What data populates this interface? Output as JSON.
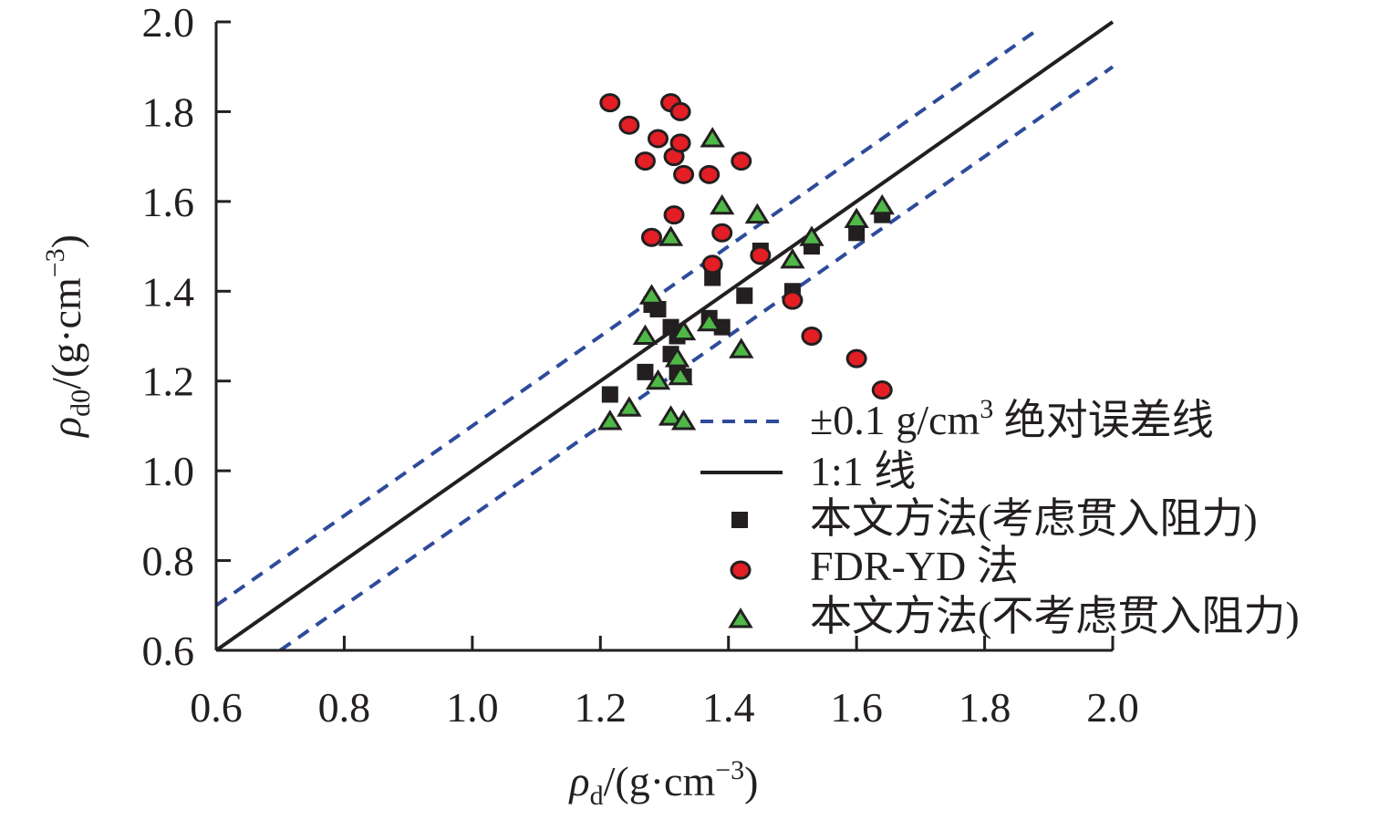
{
  "chart_data": {
    "type": "scatter",
    "title": "",
    "xlabel": {
      "symbol": "ρ",
      "sub": "d",
      "unit": "/(g·cm",
      "exp": "−3",
      "close": ")"
    },
    "ylabel": {
      "symbol": "ρ",
      "sub": "d0",
      "unit": "/(g·cm",
      "exp": "−3",
      "close": ")"
    },
    "xlim": [
      0.6,
      2.0
    ],
    "ylim": [
      0.6,
      2.0
    ],
    "xticks": [
      "0.6",
      "0.8",
      "1.0",
      "1.2",
      "1.4",
      "1.6",
      "1.8",
      "2.0"
    ],
    "yticks": [
      "0.6",
      "0.8",
      "1.0",
      "1.2",
      "1.4",
      "1.6",
      "1.8",
      "2.0"
    ],
    "lines": [
      {
        "name": "upper_error",
        "x": [
          0.6,
          1.885
        ],
        "y": [
          0.7,
          1.985
        ],
        "style": "dashed",
        "color": "#2e4b9b"
      },
      {
        "name": "lower_error",
        "x": [
          0.7,
          2.0
        ],
        "y": [
          0.6,
          1.9
        ],
        "style": "dashed",
        "color": "#2e4b9b"
      },
      {
        "name": "one_to_one",
        "x": [
          0.6,
          2.0
        ],
        "y": [
          0.6,
          2.0
        ],
        "style": "solid",
        "color": "#231f20"
      }
    ],
    "series": [
      {
        "name": "本文方法(考虑贯入阻力)",
        "marker": "square",
        "color": "#231f20",
        "points": [
          [
            1.215,
            1.17
          ],
          [
            1.27,
            1.22
          ],
          [
            1.28,
            1.37
          ],
          [
            1.29,
            1.36
          ],
          [
            1.31,
            1.32
          ],
          [
            1.31,
            1.26
          ],
          [
            1.32,
            1.3
          ],
          [
            1.32,
            1.22
          ],
          [
            1.33,
            1.21
          ],
          [
            1.37,
            1.34
          ],
          [
            1.375,
            1.43
          ],
          [
            1.39,
            1.32
          ],
          [
            1.425,
            1.39
          ],
          [
            1.45,
            1.49
          ],
          [
            1.5,
            1.4
          ],
          [
            1.53,
            1.5
          ],
          [
            1.6,
            1.53
          ],
          [
            1.64,
            1.57
          ]
        ]
      },
      {
        "name": "FDR-YD 法",
        "marker": "circle",
        "color": "#e31e24",
        "points": [
          [
            1.215,
            1.82
          ],
          [
            1.245,
            1.77
          ],
          [
            1.27,
            1.69
          ],
          [
            1.28,
            1.52
          ],
          [
            1.29,
            1.74
          ],
          [
            1.31,
            1.82
          ],
          [
            1.315,
            1.7
          ],
          [
            1.315,
            1.57
          ],
          [
            1.325,
            1.8
          ],
          [
            1.325,
            1.73
          ],
          [
            1.33,
            1.66
          ],
          [
            1.37,
            1.66
          ],
          [
            1.375,
            1.46
          ],
          [
            1.39,
            1.53
          ],
          [
            1.42,
            1.69
          ],
          [
            1.45,
            1.48
          ],
          [
            1.5,
            1.38
          ],
          [
            1.53,
            1.3
          ],
          [
            1.6,
            1.25
          ],
          [
            1.64,
            1.18
          ]
        ]
      },
      {
        "name": "本文方法(不考虑贯入阻力)",
        "marker": "triangle",
        "color": "#4fb848",
        "points": [
          [
            1.215,
            1.11
          ],
          [
            1.245,
            1.14
          ],
          [
            1.27,
            1.3
          ],
          [
            1.28,
            1.39
          ],
          [
            1.29,
            1.2
          ],
          [
            1.31,
            1.12
          ],
          [
            1.31,
            1.52
          ],
          [
            1.32,
            1.25
          ],
          [
            1.325,
            1.21
          ],
          [
            1.33,
            1.11
          ],
          [
            1.33,
            1.31
          ],
          [
            1.37,
            1.33
          ],
          [
            1.375,
            1.74
          ],
          [
            1.39,
            1.59
          ],
          [
            1.42,
            1.27
          ],
          [
            1.445,
            1.57
          ],
          [
            1.5,
            1.47
          ],
          [
            1.53,
            1.52
          ],
          [
            1.6,
            1.56
          ],
          [
            1.64,
            1.59
          ]
        ]
      }
    ],
    "legend": [
      {
        "key": "dashed",
        "label_pre": "±0.1 g/cm",
        "label_sup": "3",
        "label_post": " 绝对误差线"
      },
      {
        "key": "solid",
        "label": "1:1 线"
      },
      {
        "key": "square",
        "label": "本文方法(考虑贯入阻力)"
      },
      {
        "key": "circle",
        "label": "FDR-YD 法"
      },
      {
        "key": "triangle",
        "label": "本文方法(不考虑贯入阻力)"
      }
    ],
    "legend_position": "bottom-right"
  }
}
